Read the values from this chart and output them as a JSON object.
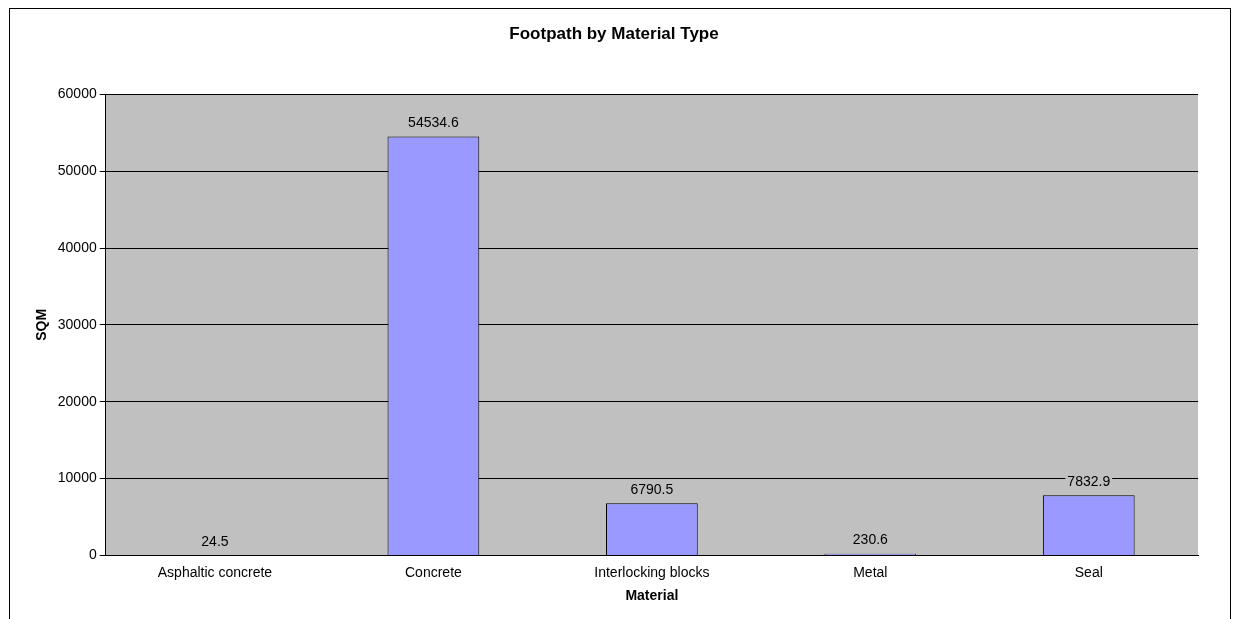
{
  "chart_data": {
    "type": "bar",
    "title": "Footpath by Material Type",
    "xlabel": "Material",
    "ylabel": "SQM",
    "categories": [
      "Asphaltic concrete",
      "Concrete",
      "Interlocking blocks",
      "Metal",
      "Seal"
    ],
    "values": [
      24.5,
      54534.6,
      6790.5,
      230.6,
      7832.9
    ],
    "color": "#9999ff",
    "ylim": [
      0,
      60000
    ],
    "yticks": [
      0,
      10000,
      20000,
      30000,
      40000,
      50000,
      60000
    ],
    "grid": "y",
    "legend": false,
    "data_labels": true
  }
}
